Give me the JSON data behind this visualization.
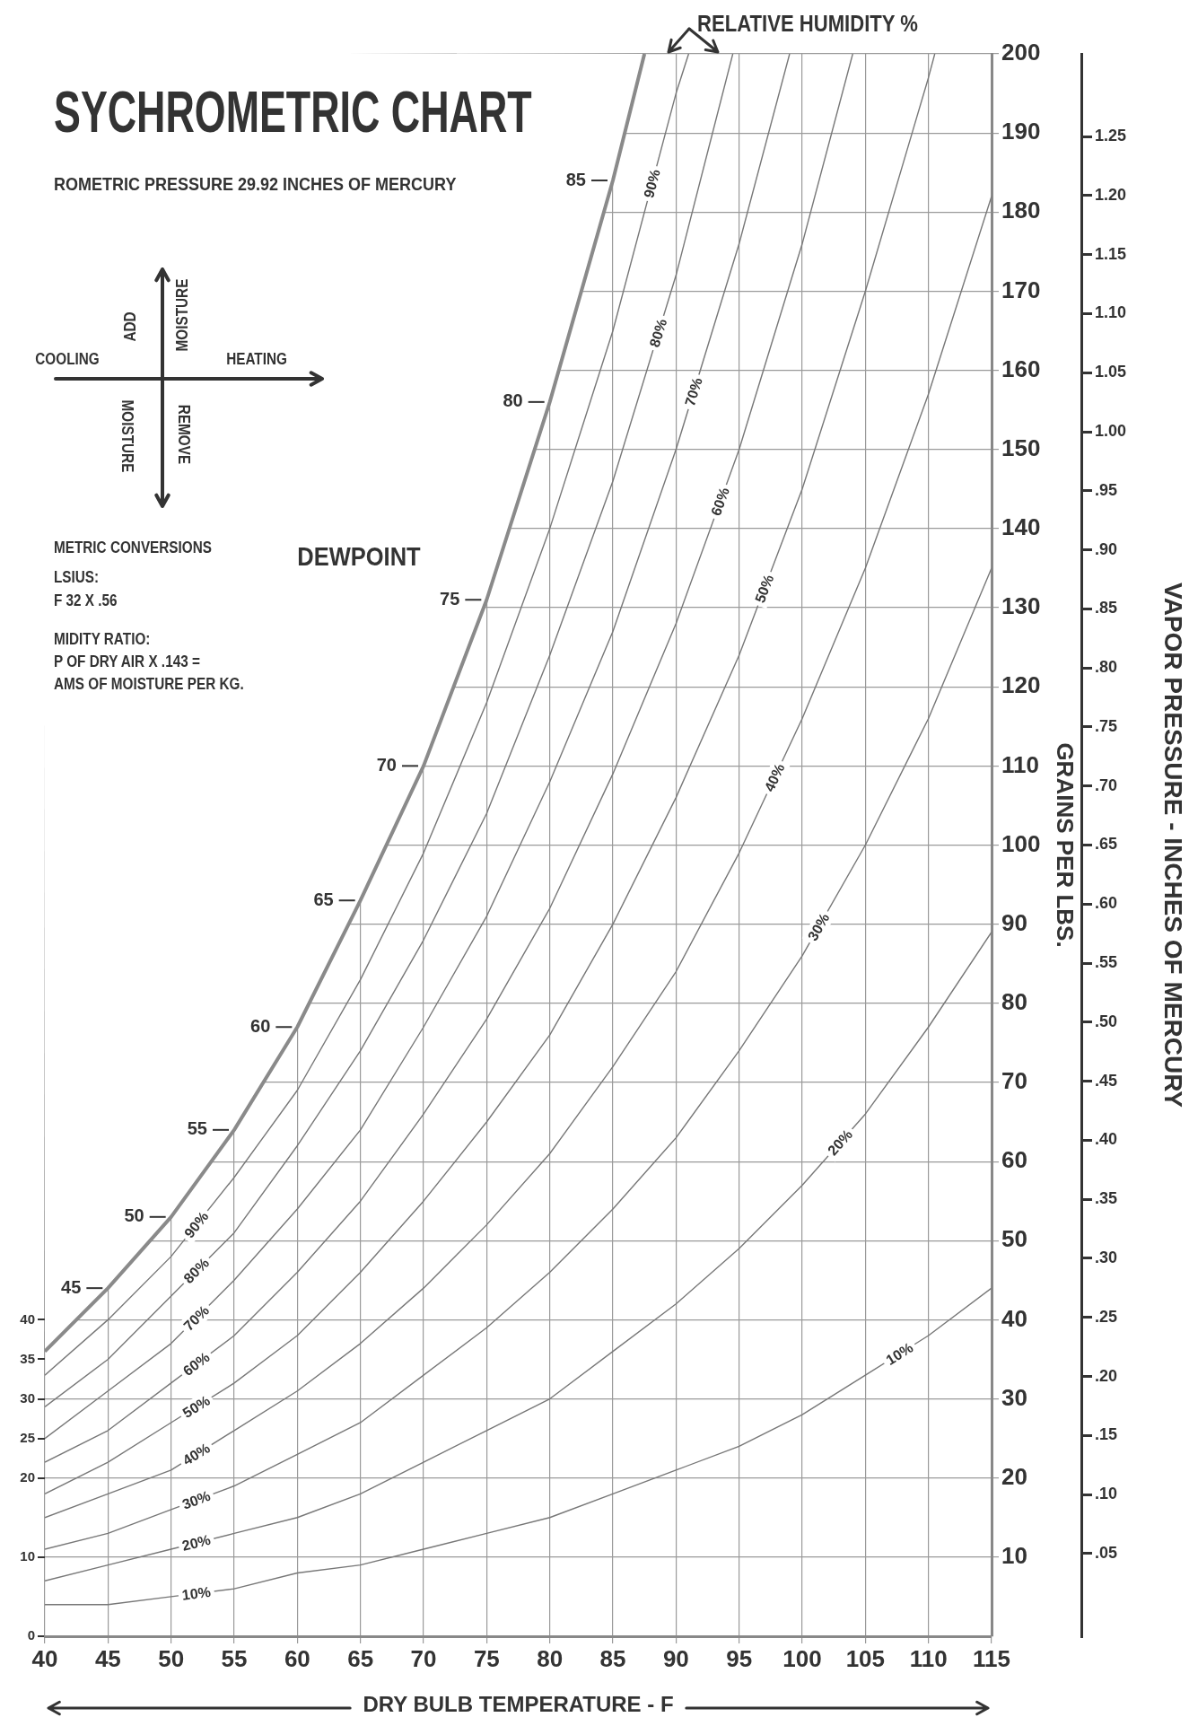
{
  "chart_data": {
    "type": "line",
    "title": "SYCHROMETRIC CHART",
    "xlabel": "DRY BULB TEMPERATURE - F",
    "ylabel": "GRAINS PER LBS.",
    "y2label": "VAPOR PRESSURE - INCHES OF MERCURY",
    "annotations": [
      "RELATIVE HUMIDITY %",
      "ROMETRIC PRESSURE 29.92 INCHES OF MERCURY",
      "HEATING",
      "COOLING",
      "ADD",
      "MOISTURE",
      "REMOVE",
      "MOISTURE",
      "METRIC CONVERSIONS",
      "LSIUS:",
      "F 32 X .56",
      "MIDITY RATIO:",
      "P OF DRY AIR X .143 =",
      "AMS OF MOISTURE PER KG.",
      "DEWPOINT",
      {
        "text": "45",
        "x": 45,
        "y": 44
      },
      {
        "text": "50",
        "x": 50,
        "y": 53
      },
      {
        "text": "55",
        "x": 55,
        "y": 64
      },
      {
        "text": "60",
        "x": 60,
        "y": 77
      },
      {
        "text": "65",
        "x": 65,
        "y": 93
      },
      {
        "text": "70",
        "x": 70,
        "y": 110
      },
      {
        "text": "75",
        "x": 75,
        "y": 131
      },
      {
        "text": "80",
        "x": 80,
        "y": 156
      },
      {
        "text": "85",
        "x": 85,
        "y": 184
      }
    ],
    "series": [
      {
        "color": "#8a8a8a",
        "x": [
          40,
          45,
          50,
          55,
          60,
          65,
          70,
          75,
          80,
          85,
          87.5
        ],
        "values": [
          36,
          44,
          53,
          64,
          77,
          93,
          110,
          131,
          156,
          184,
          200
        ]
      },
      {
        "name": "90%",
        "color": "#777777",
        "x": [
          40,
          45,
          50,
          55,
          60,
          65,
          70,
          75,
          80,
          85,
          90,
          91
        ],
        "values": [
          33,
          40,
          48,
          58,
          69,
          83,
          99,
          118,
          140,
          165,
          195,
          200
        ]
      },
      {
        "name": "80%",
        "color": "#777777",
        "x": [
          40,
          45,
          50,
          55,
          60,
          65,
          70,
          75,
          80,
          85,
          90,
          94.5
        ],
        "values": [
          29,
          35,
          43,
          51,
          62,
          74,
          88,
          104,
          124,
          146,
          172,
          200
        ]
      },
      {
        "name": "70%",
        "color": "#777777",
        "x": [
          40,
          45,
          50,
          55,
          60,
          65,
          70,
          75,
          80,
          85,
          90,
          95,
          99
        ],
        "values": [
          25,
          31,
          37,
          45,
          54,
          64,
          77,
          91,
          108,
          127,
          150,
          176,
          200
        ]
      },
      {
        "name": "60%",
        "color": "#777777",
        "x": [
          40,
          45,
          50,
          55,
          60,
          65,
          70,
          75,
          80,
          85,
          90,
          95,
          100,
          104
        ],
        "values": [
          22,
          26,
          32,
          38,
          46,
          55,
          66,
          78,
          92,
          109,
          128,
          150,
          176,
          200
        ]
      },
      {
        "name": "50%",
        "color": "#777777",
        "x": [
          40,
          45,
          50,
          55,
          60,
          65,
          70,
          75,
          80,
          85,
          90,
          95,
          100,
          105,
          110,
          110.5
        ],
        "values": [
          18,
          22,
          27,
          32,
          38,
          46,
          55,
          65,
          76,
          90,
          106,
          124,
          145,
          170,
          197,
          200
        ]
      },
      {
        "name": "40%",
        "color": "#777777",
        "x": [
          40,
          45,
          50,
          55,
          60,
          65,
          70,
          75,
          80,
          85,
          90,
          95,
          100,
          105,
          110,
          115
        ],
        "values": [
          15,
          18,
          21,
          26,
          31,
          37,
          44,
          52,
          61,
          72,
          84,
          99,
          116,
          135,
          157,
          182
        ]
      },
      {
        "name": "30%",
        "color": "#777777",
        "x": [
          40,
          45,
          50,
          55,
          60,
          65,
          70,
          75,
          80,
          85,
          90,
          95,
          100,
          105,
          110,
          115
        ],
        "values": [
          11,
          13,
          16,
          19,
          23,
          27,
          33,
          39,
          46,
          54,
          63,
          74,
          86,
          100,
          116,
          135
        ]
      },
      {
        "name": "20%",
        "color": "#777777",
        "x": [
          40,
          45,
          50,
          55,
          60,
          65,
          70,
          75,
          80,
          85,
          90,
          95,
          100,
          105,
          110,
          115
        ],
        "values": [
          7,
          9,
          11,
          13,
          15,
          18,
          22,
          26,
          30,
          36,
          42,
          49,
          57,
          66,
          77,
          89
        ]
      },
      {
        "name": "10%",
        "color": "#777777",
        "x": [
          40,
          45,
          50,
          55,
          60,
          65,
          70,
          75,
          80,
          85,
          90,
          95,
          100,
          105,
          110,
          115
        ],
        "values": [
          4,
          4,
          5,
          6,
          8,
          9,
          11,
          13,
          15,
          18,
          21,
          24,
          28,
          33,
          38,
          44
        ]
      }
    ],
    "xlim": [
      40,
      115
    ],
    "xticks": [
      40,
      45,
      50,
      55,
      60,
      65,
      70,
      75,
      80,
      85,
      90,
      95,
      100,
      105,
      110,
      115
    ],
    "ylim": [
      0,
      200
    ],
    "yticks": [
      10,
      20,
      30,
      40,
      50,
      60,
      70,
      80,
      90,
      100,
      110,
      120,
      130,
      140,
      150,
      160,
      170,
      180,
      190,
      200
    ],
    "y2lim": [
      -0.02,
      1.32
    ],
    "y2ticks": [
      {
        "value": 0.05,
        "label": ".05"
      },
      {
        "value": 0.1,
        "label": ".10"
      },
      {
        "value": 0.15,
        "label": ".15"
      },
      {
        "value": 0.2,
        "label": ".20"
      },
      {
        "value": 0.25,
        "label": ".25"
      },
      {
        "value": 0.3,
        "label": ".30"
      },
      {
        "value": 0.35,
        "label": ".35"
      },
      {
        "value": 0.4,
        "label": ".40"
      },
      {
        "value": 0.45,
        "label": ".45"
      },
      {
        "value": 0.5,
        "label": ".50"
      },
      {
        "value": 0.55,
        "label": ".55"
      },
      {
        "value": 0.6,
        "label": ".60"
      },
      {
        "value": 0.65,
        "label": ".65"
      },
      {
        "value": 0.7,
        "label": ".70"
      },
      {
        "value": 0.75,
        "label": ".75"
      },
      {
        "value": 0.8,
        "label": ".80"
      },
      {
        "value": 0.85,
        "label": ".85"
      },
      {
        "value": 0.9,
        "label": ".90"
      },
      {
        "value": 0.95,
        "label": ".95"
      },
      {
        "value": 1.0,
        "label": "1.00"
      },
      {
        "value": 1.05,
        "label": "1.05"
      },
      {
        "value": 1.1,
        "label": "1.10"
      },
      {
        "value": 1.15,
        "label": "1.15"
      },
      {
        "value": 1.2,
        "label": "1.20"
      },
      {
        "value": 1.25,
        "label": "1.25"
      }
    ],
    "y3lim": [
      0,
      200
    ],
    "y3ticks": [
      0,
      10,
      20,
      25,
      30,
      35,
      40
    ],
    "grid": true
  }
}
